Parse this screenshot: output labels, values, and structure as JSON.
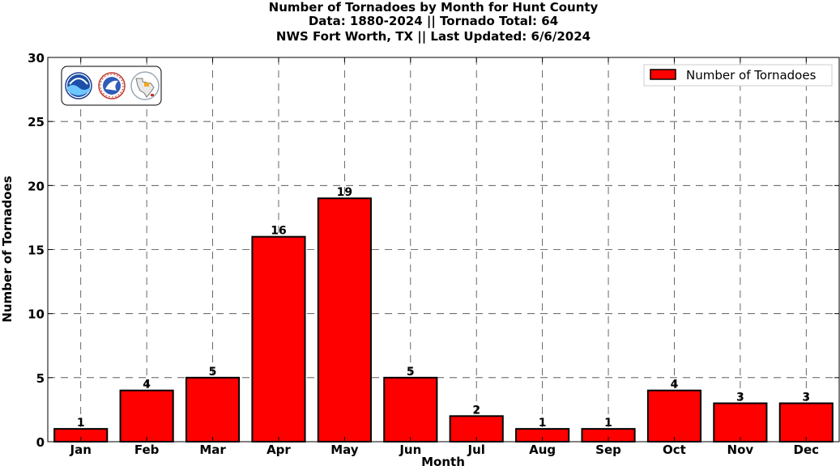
{
  "chart_data": {
    "type": "bar",
    "title_lines": [
      "Number of Tornadoes by Month for Hunt County",
      "Data: 1880-2024 || Tornado Total: 64",
      "NWS Fort Worth, TX || Last Updated: 6/6/2024"
    ],
    "xlabel": "Month",
    "ylabel": "Number of Tornadoes",
    "categories": [
      "Jan",
      "Feb",
      "Mar",
      "Apr",
      "May",
      "Jun",
      "Jul",
      "Aug",
      "Sep",
      "Oct",
      "Nov",
      "Dec"
    ],
    "series": [
      {
        "name": "Number of Tornadoes",
        "values": [
          1,
          4,
          5,
          16,
          19,
          5,
          2,
          1,
          1,
          4,
          3,
          3
        ]
      }
    ],
    "ylim": [
      0,
      30
    ],
    "yticks": [
      0,
      5,
      10,
      15,
      20,
      25,
      30
    ],
    "grid": true,
    "legend_position": "top-right",
    "bar_color": "#ff0000",
    "edge_color": "#000000",
    "logos": [
      "noaa-logo-icon",
      "national-weather-service-logo-icon",
      "texas-map-logo-icon"
    ]
  }
}
